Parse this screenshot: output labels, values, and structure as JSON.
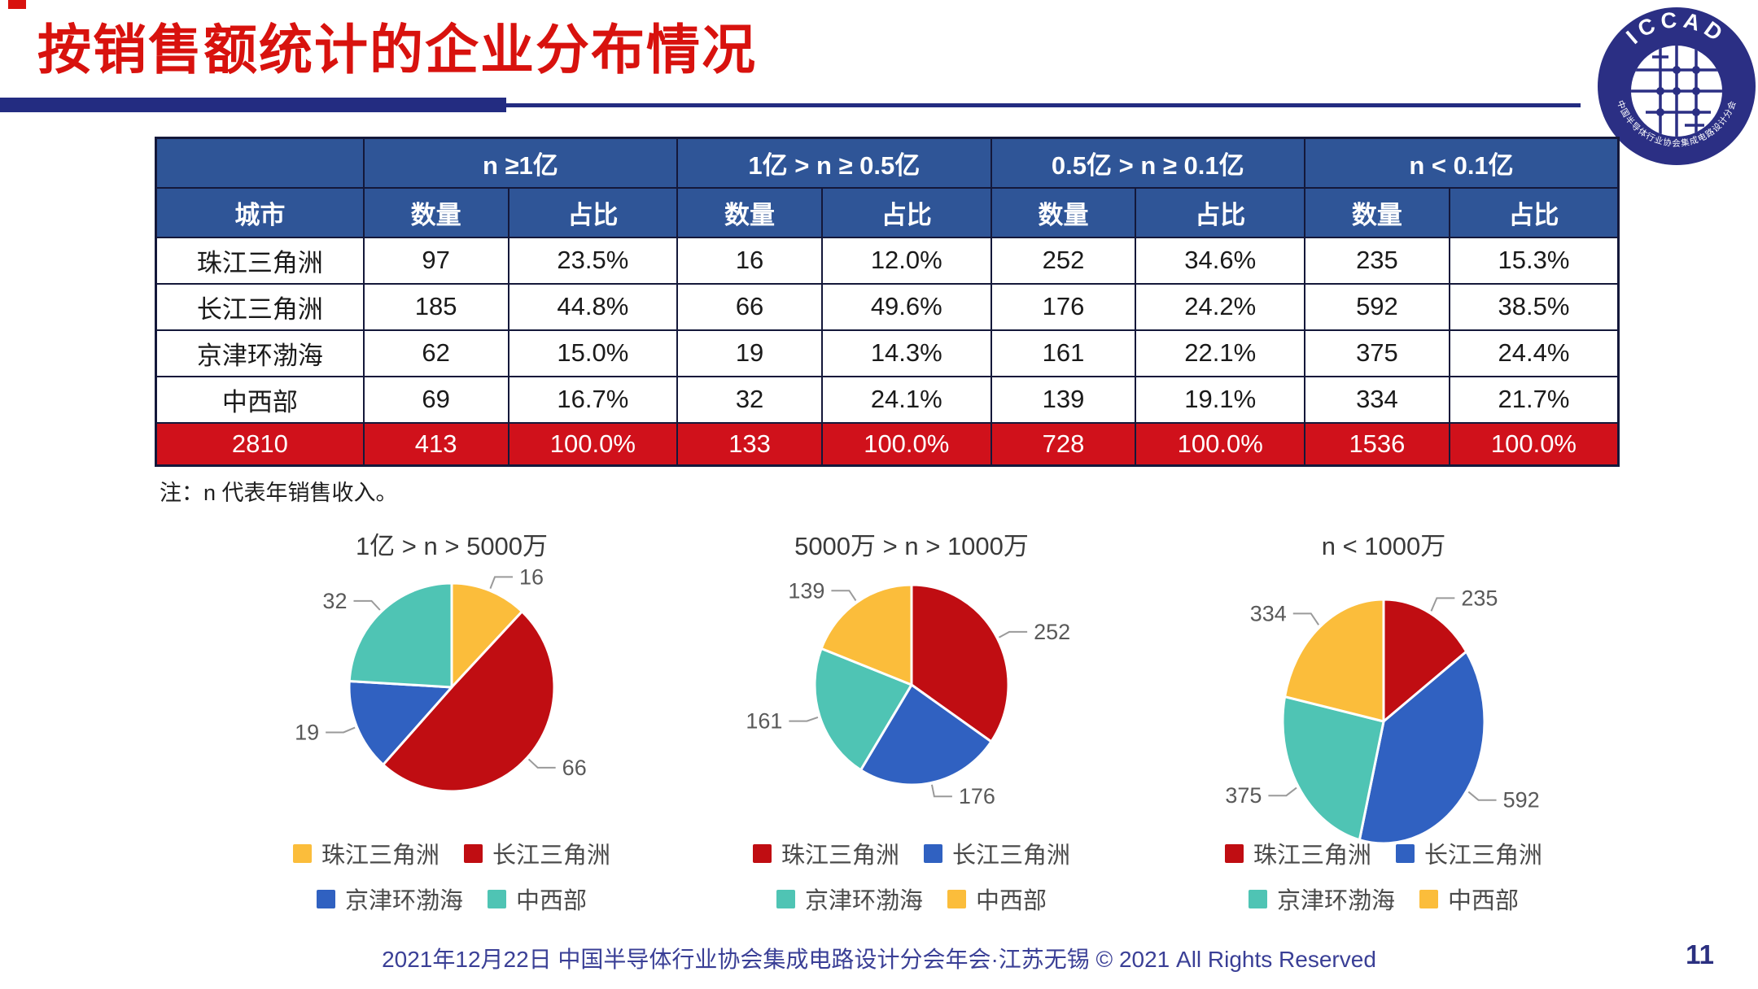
{
  "slide": {
    "title": "按销售额统计的企业分布情况",
    "note": "注：n 代表年销售收入。",
    "footer": "2021年12月22日 中国半导体行业协会集成电路设计分会年会·江苏无锡 © 2021 All Rights Reserved",
    "page_number": "11"
  },
  "logo": {
    "top_text": "ICCAD",
    "bottom_text": "中国半导体行业协会集成电路设计分会"
  },
  "colors": {
    "title_red": "#d8120e",
    "bar_navy": "#232c81",
    "table_header_blue": "#2f5597",
    "table_total_red": "#d0111b",
    "pie_red": "#c00d12",
    "pie_blue": "#3061c1",
    "pie_teal": "#4fc4b4",
    "pie_yellow": "#fbbd3b",
    "footer_navy": "#3a3f96"
  },
  "table": {
    "city_header": "城市",
    "group_headers": [
      "n ≥1亿",
      "1亿 > n ≥ 0.5亿",
      "0.5亿 > n ≥ 0.1亿",
      "n < 0.1亿"
    ],
    "sub_headers": [
      "数量",
      "占比",
      "数量",
      "占比",
      "数量",
      "占比",
      "数量",
      "占比"
    ],
    "rows": [
      {
        "city": "珠江三角洲",
        "values": [
          "97",
          "23.5%",
          "16",
          "12.0%",
          "252",
          "34.6%",
          "235",
          "15.3%"
        ]
      },
      {
        "city": "长江三角洲",
        "values": [
          "185",
          "44.8%",
          "66",
          "49.6%",
          "176",
          "24.2%",
          "592",
          "38.5%"
        ]
      },
      {
        "city": "京津环渤海",
        "values": [
          "62",
          "15.0%",
          "19",
          "14.3%",
          "161",
          "22.1%",
          "375",
          "24.4%"
        ]
      },
      {
        "city": "中西部",
        "values": [
          "69",
          "16.7%",
          "32",
          "24.1%",
          "139",
          "19.1%",
          "334",
          "21.7%"
        ]
      }
    ],
    "total_row": {
      "city": "2810",
      "values": [
        "413",
        "100.0%",
        "133",
        "100.0%",
        "728",
        "100.0%",
        "1536",
        "100.0%"
      ]
    }
  },
  "chart_data": [
    {
      "type": "pie",
      "title": "1亿 > n > 5000万",
      "total": 133,
      "legend_position": "bottom",
      "slices": [
        {
          "label": "珠江三角洲",
          "value": 16,
          "color": "#fbbd3b"
        },
        {
          "label": "长江三角洲",
          "value": 66,
          "color": "#c00d12"
        },
        {
          "label": "京津环渤海",
          "value": 19,
          "color": "#3061c1"
        },
        {
          "label": "中西部",
          "value": 32,
          "color": "#4fc4b4"
        }
      ]
    },
    {
      "type": "pie",
      "title": "5000万 > n > 1000万",
      "total": 728,
      "legend_position": "bottom",
      "slices": [
        {
          "label": "珠江三角洲",
          "value": 252,
          "color": "#c00d12"
        },
        {
          "label": "长江三角洲",
          "value": 176,
          "color": "#3061c1"
        },
        {
          "label": "京津环渤海",
          "value": 161,
          "color": "#4fc4b4"
        },
        {
          "label": "中西部",
          "value": 139,
          "color": "#fbbd3b"
        }
      ]
    },
    {
      "type": "pie",
      "title": "n < 1000万",
      "total": 1536,
      "legend_position": "bottom",
      "slices": [
        {
          "label": "珠江三角洲",
          "value": 235,
          "color": "#c00d12"
        },
        {
          "label": "长江三角洲",
          "value": 592,
          "color": "#3061c1"
        },
        {
          "label": "京津环渤海",
          "value": 375,
          "color": "#4fc4b4"
        },
        {
          "label": "中西部",
          "value": 334,
          "color": "#fbbd3b"
        }
      ]
    }
  ]
}
